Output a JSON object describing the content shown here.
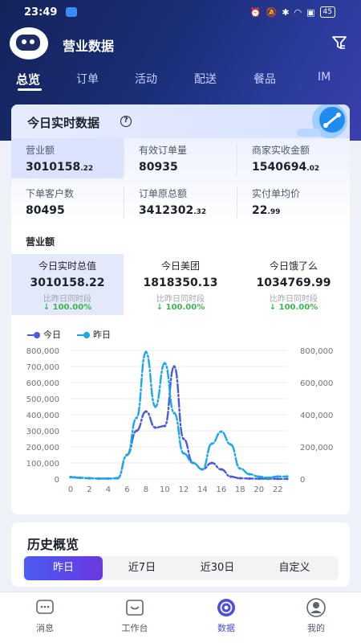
{
  "status_bar": {
    "time": "23:49",
    "battery": "45"
  },
  "app": {
    "title": "营业数据"
  },
  "tabs": [
    "总览",
    "订单",
    "活动",
    "配送",
    "餐品",
    "IM"
  ],
  "realtime": {
    "title": "今日实时数据",
    "help_icon": "help-icon",
    "metrics": [
      {
        "label": "营业额",
        "int": "3010158",
        "dec": ".22"
      },
      {
        "label": "有效订单量",
        "int": "80935",
        "dec": ""
      },
      {
        "label": "商家实收金额",
        "int": "1540694",
        "dec": ".02"
      },
      {
        "label": "下单客户数",
        "int": "80495",
        "dec": ""
      },
      {
        "label": "订单原总额",
        "int": "3412302",
        "dec": ".32"
      },
      {
        "label": "实付单均价",
        "int": "22",
        "dec": ".99"
      }
    ],
    "section_label": "营业额",
    "compare": [
      {
        "label": "今日实时总值",
        "value": "3010158.22",
        "sub": "比昨日同时段",
        "pct": "↓ 100.00%"
      },
      {
        "label": "今日美团",
        "value": "1818350.13",
        "sub": "比昨日同时段",
        "pct": "↓ 100.00%"
      },
      {
        "label": "今日饿了么",
        "value": "1034769.99",
        "sub": "比昨日同时段",
        "pct": "↓ 100.00%"
      }
    ]
  },
  "chart_data": {
    "type": "line",
    "x": [
      0,
      1,
      2,
      3,
      4,
      5,
      6,
      7,
      8,
      9,
      10,
      11,
      12,
      13,
      14,
      15,
      16,
      17,
      18,
      19,
      20,
      21,
      22,
      23
    ],
    "x_ticks": [
      "0",
      "2",
      "4",
      "6",
      "8",
      "10",
      "12",
      "14",
      "16",
      "18",
      "20",
      "22"
    ],
    "y_left_ticks": [
      "0",
      "100,000",
      "200,000",
      "300,000",
      "400,000",
      "500,000",
      "600,000",
      "700,000",
      "800,000"
    ],
    "y_right_ticks": [
      "0",
      "200,000",
      "400,000",
      "600,000",
      "800,000"
    ],
    "ylim": [
      0,
      800000
    ],
    "series": [
      {
        "name": "今日",
        "color": "#4a5bd6",
        "values": [
          12000,
          8000,
          5000,
          3000,
          3000,
          5000,
          150000,
          300000,
          420000,
          320000,
          330000,
          700000,
          250000,
          100000,
          60000,
          100000,
          60000,
          15000,
          5000,
          3000,
          2000,
          2000,
          1000,
          1000
        ]
      },
      {
        "name": "昨日",
        "color": "#1aa7ec",
        "values": [
          12000,
          8000,
          5000,
          3000,
          3000,
          5000,
          150000,
          380000,
          790000,
          450000,
          720000,
          410000,
          160000,
          100000,
          60000,
          220000,
          295000,
          215000,
          65000,
          30000,
          15000,
          8000,
          16000,
          16000
        ]
      }
    ],
    "grid": true,
    "legend": "top-left"
  },
  "history": {
    "title": "历史概览",
    "ranges": [
      "昨日",
      "近7日",
      "近30日",
      "自定义"
    ],
    "active_range": 0
  },
  "bottom_nav": [
    {
      "label": "消息",
      "icon": "message-icon"
    },
    {
      "label": "工作台",
      "icon": "workbench-icon"
    },
    {
      "label": "数据",
      "icon": "data-icon"
    },
    {
      "label": "我的",
      "icon": "profile-icon"
    }
  ],
  "active_nav": 2
}
